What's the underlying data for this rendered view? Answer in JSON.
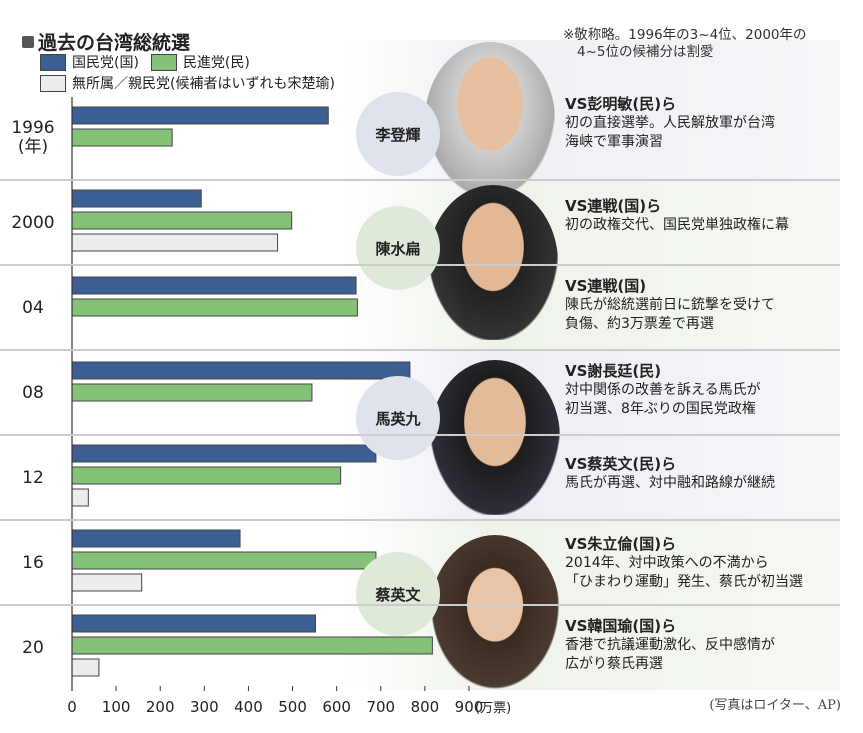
{
  "title": "過去の台湾総統選",
  "note": [
    "※敬称略。1996年の3~4位、2000年の",
    "4~5位の候補分は割愛"
  ],
  "legend": {
    "kmt": "国民党(国)",
    "dpp": "民進党(民)",
    "other": "無所属／親民党(候補者はいずれも宋楚瑜)"
  },
  "colors": {
    "kmt": "#3c5f93",
    "dpp": "#86c17a",
    "other": "#ececec"
  },
  "rows": [
    {
      "year": "1996",
      "year_sub": "(年)",
      "vs": "VS彭明敏(民)ら",
      "desc": [
        "初の直接選挙。人民解放軍が台湾",
        "海峡で軍事演習"
      ]
    },
    {
      "year": "2000",
      "vs": "VS連戦(国)ら",
      "desc": [
        "初の政権交代、国民党単独政権に幕"
      ]
    },
    {
      "year": "04",
      "vs": "VS連戦(国)",
      "desc": [
        "陳氏が総統選前日に銃撃を受けて",
        "負傷、約3万票差で再選"
      ]
    },
    {
      "year": "08",
      "vs": "VS謝長廷(民)",
      "desc": [
        "対中関係の改善を訴える馬氏が",
        "初当選、8年ぶりの国民党政権"
      ]
    },
    {
      "year": "12",
      "vs": "VS蔡英文(民)ら",
      "desc": [
        "馬氏が再選、対中融和路線が継続"
      ]
    },
    {
      "year": "16",
      "vs": "VS朱立倫(国)ら",
      "desc": [
        "2014年、対中政策への不満から",
        "「ひまわり運動」発生、蔡氏が初当選"
      ]
    },
    {
      "year": "20",
      "vs": "VS韓国瑜(国)ら",
      "desc": [
        "香港で抗議運動激化、反中感情が",
        "広がり蔡氏再選"
      ]
    }
  ],
  "winners": [
    "李登輝",
    "陳水扁",
    "馬英九",
    "蔡英文"
  ],
  "credit": "(写真はロイター、AP)",
  "chart_data": {
    "type": "bar",
    "orientation": "horizontal",
    "title": "過去の台湾総統選",
    "categories": [
      "1996",
      "2000",
      "04",
      "08",
      "12",
      "16",
      "20"
    ],
    "series": [
      {
        "name": "国民党(国)",
        "values": [
          581,
          293,
          644,
          766,
          689,
          381,
          552
        ]
      },
      {
        "name": "民進党(民)",
        "values": [
          227,
          498,
          647,
          544,
          609,
          689,
          817
        ]
      },
      {
        "name": "無所属／親民党",
        "values": [
          null,
          466,
          null,
          null,
          37,
          158,
          61
        ]
      }
    ],
    "xlim": [
      0,
      900
    ],
    "xticks": [
      0,
      100,
      200,
      300,
      400,
      500,
      600,
      700,
      800,
      900
    ],
    "xunit": "(万票)",
    "legend": "top-left"
  }
}
